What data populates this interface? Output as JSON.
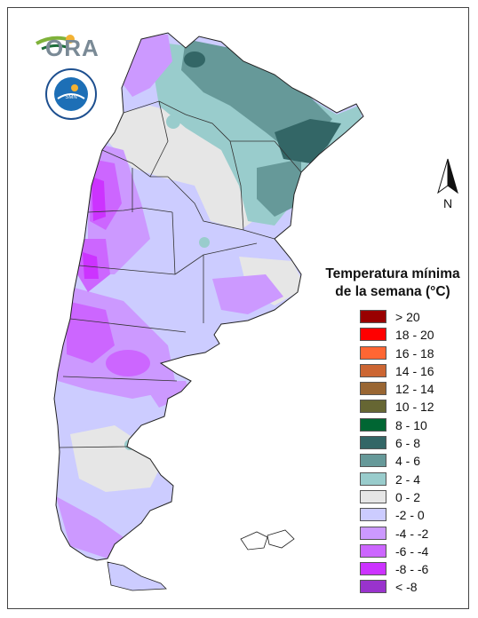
{
  "logo": {
    "text": "ORA",
    "seal_text": "SERVICIO METEOROLOGICO NACIONAL · ARGENTINA"
  },
  "north": {
    "label": "N"
  },
  "legend": {
    "title_line1": "Temperatura mínima",
    "title_line2": "de la semana (°C)",
    "items": [
      {
        "label": "> 20",
        "color": "#990000"
      },
      {
        "label": "18 - 20",
        "color": "#ff0000"
      },
      {
        "label": "16 - 18",
        "color": "#ff6633"
      },
      {
        "label": "14 - 16",
        "color": "#cc6633"
      },
      {
        "label": "12 - 14",
        "color": "#996633"
      },
      {
        "label": "10 - 12",
        "color": "#666633"
      },
      {
        "label": "8 - 10",
        "color": "#006633"
      },
      {
        "label": "6 - 8",
        "color": "#336666"
      },
      {
        "label": "4 - 6",
        "color": "#669999"
      },
      {
        "label": "2 - 4",
        "color": "#99cccc"
      },
      {
        "label": "0 - 2",
        "color": "#e6e6e6"
      },
      {
        "label": "-2 - 0",
        "color": "#ccccff"
      },
      {
        "label": "-4 - -2",
        "color": "#cc99ff"
      },
      {
        "label": "-6 - -4",
        "color": "#cc66ff"
      },
      {
        "label": "-8 - -6",
        "color": "#cc33ff"
      },
      {
        "label": "< -8",
        "color": "#9933cc"
      }
    ]
  }
}
